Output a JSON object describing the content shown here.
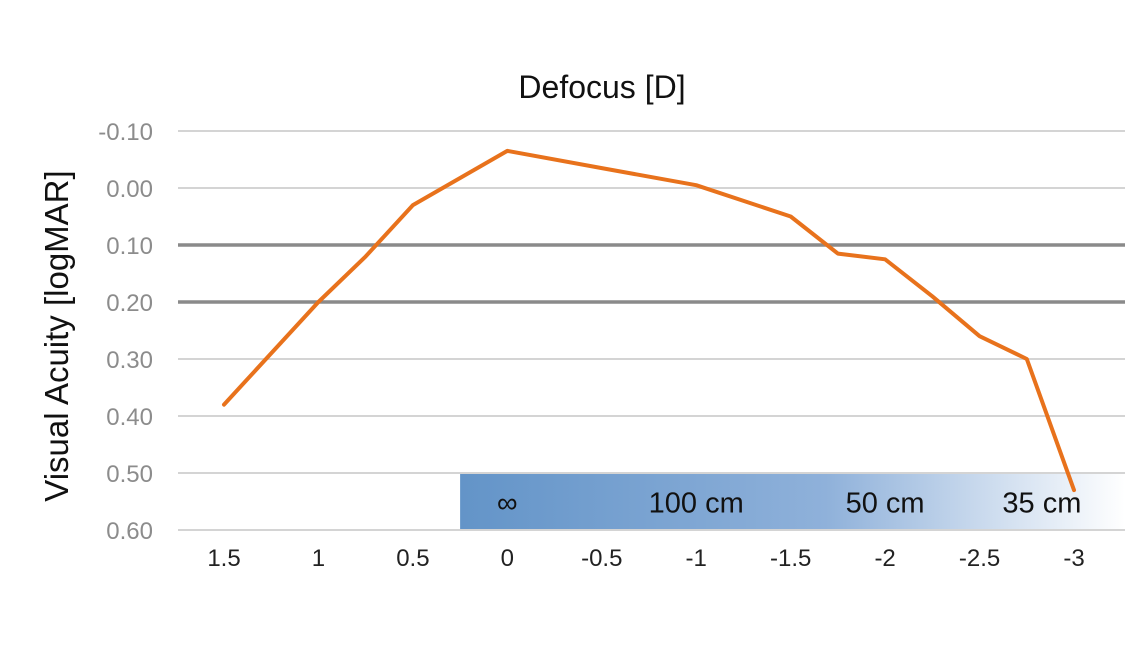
{
  "chart_data": {
    "type": "line",
    "title": "Defocus [D]",
    "xlabel": "",
    "ylabel": "Visual Acuity [logMAR]",
    "x_ticks": [
      "1.5",
      "1",
      "0.5",
      "0",
      "-0.5",
      "-1",
      "-1.5",
      "-2",
      "-2.5",
      "-3"
    ],
    "xlim": [
      1.5,
      -3
    ],
    "x_reversed": true,
    "y_ticks": [
      "-0.10",
      "0.00",
      "0.10",
      "0.20",
      "0.30",
      "0.40",
      "0.50",
      "0.60"
    ],
    "ylim": [
      -0.1,
      0.6
    ],
    "y_inverted": true,
    "grid": true,
    "highlight_lines_y": [
      0.1,
      0.2
    ],
    "series": [
      {
        "color": "#e8721c",
        "x": [
          1.5,
          1.0,
          0.75,
          0.5,
          0.0,
          -0.5,
          -1.0,
          -1.5,
          -1.75,
          -2.0,
          -2.25,
          -2.5,
          -2.75,
          -3.0
        ],
        "y": [
          0.38,
          0.2,
          0.12,
          0.03,
          -0.065,
          -0.035,
          -0.005,
          0.05,
          0.115,
          0.125,
          0.19,
          0.26,
          0.3,
          0.53
        ]
      }
    ],
    "distance_band": {
      "labels": [
        "∞",
        "100 cm",
        "50 cm",
        "35 cm"
      ],
      "label_x": [
        0.0,
        -1.0,
        -2.0,
        -2.83
      ],
      "x_start": 0.25,
      "x_end": -3.0,
      "y_range": [
        0.5,
        0.6
      ],
      "color_start": "#6394c8",
      "color_end": "#ffffff"
    }
  }
}
